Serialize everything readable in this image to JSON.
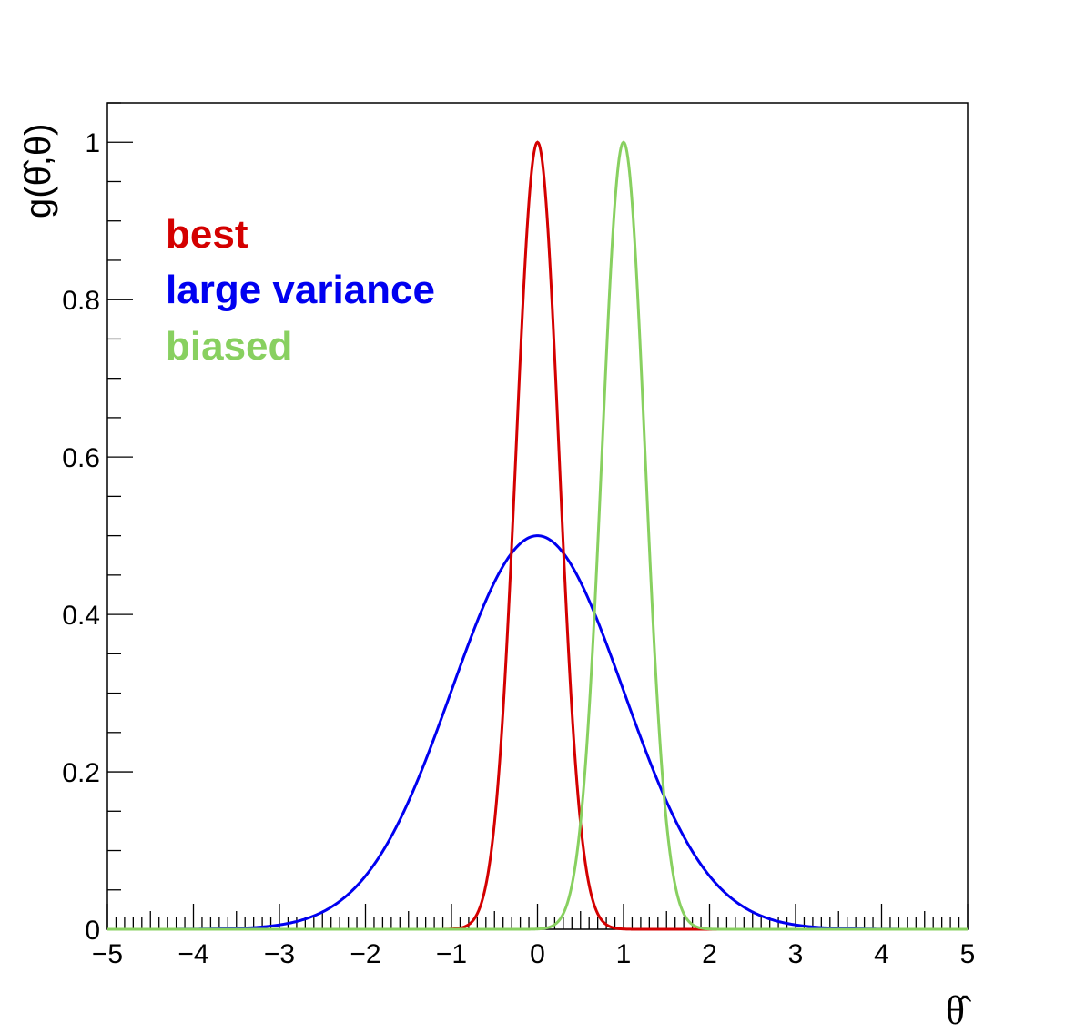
{
  "chart_data": {
    "type": "line",
    "xlabel": "θ̂",
    "ylabel": "g(θ̂,θ)",
    "xlim": [
      -5,
      5
    ],
    "ylim": [
      0,
      1.05
    ],
    "x_ticks": [
      -5,
      -4,
      -3,
      -2,
      -1,
      0,
      1,
      2,
      3,
      4,
      5
    ],
    "x_tick_labels": [
      "−5",
      "−4",
      "−3",
      "−2",
      "−1",
      "0",
      "1",
      "2",
      "3",
      "4",
      "5"
    ],
    "y_ticks": [
      0,
      0.2,
      0.4,
      0.6,
      0.8,
      1
    ],
    "y_tick_labels": [
      "0",
      "0.2",
      "0.4",
      "0.6",
      "0.8",
      "1"
    ],
    "grid": false,
    "legend_position": "top-left",
    "series": [
      {
        "name": "best",
        "color": "#d40000",
        "mean": 0,
        "sigma": 0.25,
        "amplitude": 1.0
      },
      {
        "name": "large variance",
        "color": "#0000f0",
        "mean": 0,
        "sigma": 1.0,
        "amplitude": 0.5
      },
      {
        "name": "biased",
        "color": "#88d060",
        "mean": 1,
        "sigma": 0.25,
        "amplitude": 1.0
      }
    ]
  }
}
